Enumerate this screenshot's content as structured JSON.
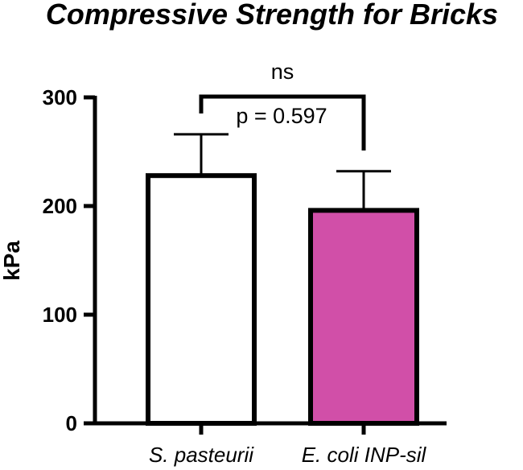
{
  "chart_data": {
    "type": "bar",
    "title": "Compressive Strength for Bricks",
    "ylabel": "kPa",
    "xlabel": "",
    "ylim": [
      0,
      300
    ],
    "yticks": [
      0,
      100,
      200,
      300
    ],
    "categories": [
      "S. pasteurii",
      "E. coli INP-sil"
    ],
    "values": [
      228,
      196
    ],
    "errors": [
      38,
      36
    ],
    "colors": [
      "#ffffff",
      "#d14fa8"
    ],
    "edge_color": "#000000",
    "grid": false,
    "significance": {
      "label": "ns",
      "p_text": "p = 0.597",
      "between": [
        0,
        1
      ]
    }
  }
}
